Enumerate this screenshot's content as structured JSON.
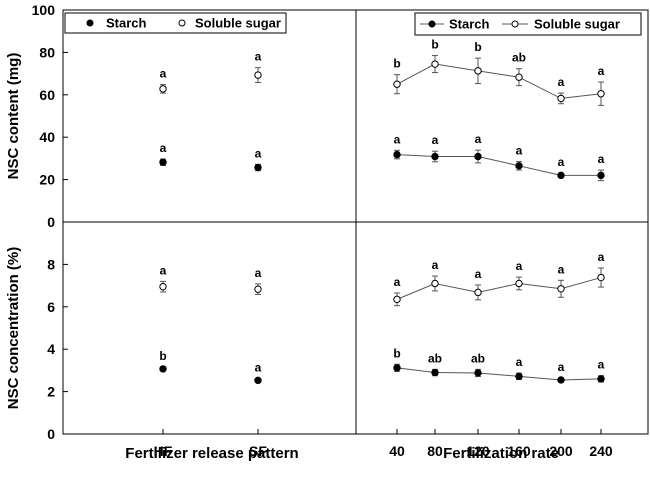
{
  "figure": {
    "ylabel_top": "NSC content (mg)",
    "ylabel_bottom": "NSC concentration (%)",
    "xlabel_left": "Fertilizer release pattern",
    "xlabel_right": "Fertilization rate",
    "legend_left": [
      {
        "label": "Starch",
        "marker": "filled"
      },
      {
        "label": "Soluble sugar",
        "marker": "open"
      }
    ],
    "legend_right": [
      {
        "label": "Starch",
        "marker": "filled"
      },
      {
        "label": "Soluble sugar",
        "marker": "open"
      }
    ],
    "colors": {
      "starch": "#000000",
      "soluble_sugar": "#ffffff",
      "line": "#555555"
    }
  },
  "chart_data": [
    {
      "panel": "top-left",
      "type": "scatter",
      "categories": [
        "HF",
        "SF"
      ],
      "ylim": [
        0,
        100
      ],
      "yticks": [
        0,
        20,
        40,
        60,
        80,
        100
      ],
      "series": [
        {
          "name": "Starch",
          "marker": "filled",
          "values": [
            28.2,
            25.7
          ],
          "errors": [
            1.5,
            1.5
          ],
          "letters": [
            "a",
            "a"
          ]
        },
        {
          "name": "Soluble sugar",
          "marker": "open",
          "values": [
            62.8,
            69.3
          ],
          "errors": [
            2,
            3.5
          ],
          "letters": [
            "a",
            "a"
          ]
        }
      ],
      "legend": "top-left",
      "grid": false
    },
    {
      "panel": "top-right",
      "type": "line",
      "categories": [
        "40",
        "80",
        "120",
        "160",
        "200",
        "240"
      ],
      "ylim": [
        0,
        100
      ],
      "series": [
        {
          "name": "Starch",
          "marker": "filled",
          "values": [
            31.8,
            30.9,
            30.9,
            26.5,
            22,
            22
          ],
          "errors": [
            2,
            2.5,
            3,
            2,
            1,
            2.5
          ],
          "letters": [
            "a",
            "a",
            "a",
            "a",
            "a",
            "a"
          ]
        },
        {
          "name": "Soluble sugar",
          "marker": "open",
          "values": [
            65,
            74.5,
            71.3,
            68.3,
            58.3,
            60.5
          ],
          "errors": [
            4.5,
            4,
            6,
            4,
            2.5,
            5.5
          ],
          "letters": [
            "b",
            "b",
            "b",
            "ab",
            "a",
            "a"
          ]
        }
      ],
      "legend": "top-right",
      "grid": false
    },
    {
      "panel": "bottom-left",
      "type": "scatter",
      "categories": [
        "HF",
        "SF"
      ],
      "ylim": [
        0,
        10
      ],
      "yticks": [
        0,
        2,
        4,
        6,
        8
      ],
      "series": [
        {
          "name": "Starch",
          "marker": "filled",
          "values": [
            3.07,
            2.53
          ],
          "errors": [
            0.1,
            0.08
          ],
          "letters": [
            "b",
            "a"
          ]
        },
        {
          "name": "Soluble sugar",
          "marker": "open",
          "values": [
            6.95,
            6.83
          ],
          "errors": [
            0.25,
            0.25
          ],
          "letters": [
            "a",
            "a"
          ]
        }
      ],
      "grid": false
    },
    {
      "panel": "bottom-right",
      "type": "line",
      "categories": [
        "40",
        "80",
        "120",
        "160",
        "200",
        "240"
      ],
      "ylim": [
        0,
        10
      ],
      "series": [
        {
          "name": "Starch",
          "marker": "filled",
          "values": [
            3.12,
            2.9,
            2.88,
            2.72,
            2.55,
            2.6
          ],
          "errors": [
            0.17,
            0.15,
            0.17,
            0.15,
            0.08,
            0.15
          ],
          "letters": [
            "b",
            "ab",
            "ab",
            "a",
            "a",
            "a"
          ]
        },
        {
          "name": "Soluble sugar",
          "marker": "open",
          "values": [
            6.35,
            7.1,
            6.68,
            7.1,
            6.85,
            7.38
          ],
          "errors": [
            0.3,
            0.35,
            0.35,
            0.3,
            0.4,
            0.45
          ],
          "letters": [
            "a",
            "a",
            "a",
            "a",
            "a",
            "a"
          ]
        }
      ],
      "grid": false
    }
  ]
}
